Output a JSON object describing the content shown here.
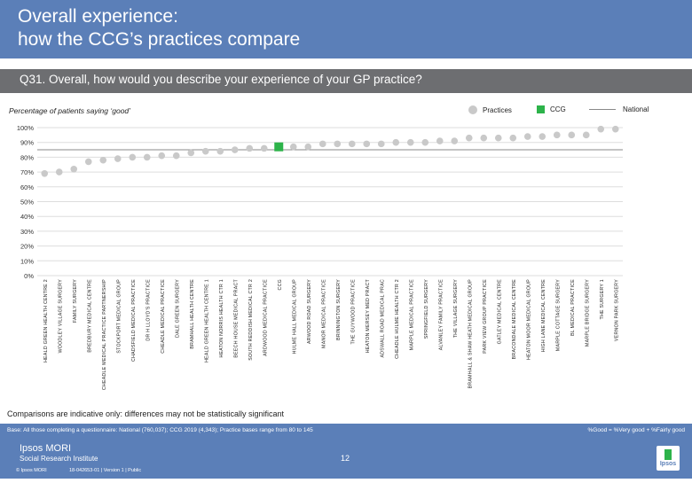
{
  "header": {
    "title": "Overall experience:\nhow the CCG’s practices compare",
    "question": "Q31. Overall, how would you describe your experience of your GP practice?"
  },
  "subtitle": "Percentage of patients saying ‘good’",
  "legend": {
    "practices": "Practices",
    "ccg": "CCG",
    "national": "National"
  },
  "colors": {
    "practice": "#c9c9c9",
    "ccg": "#2db34a",
    "national": "#888888",
    "header": "#5b7fb8"
  },
  "chart_data": {
    "type": "scatter",
    "ylim": [
      0,
      100
    ],
    "yticks": [
      "0%",
      "10%",
      "20%",
      "30%",
      "40%",
      "50%",
      "60%",
      "70%",
      "80%",
      "90%",
      "100%"
    ],
    "national_value": 85,
    "categories": [
      "HEALD GREEN HEALTH CENTRE 2",
      "WOODLEY VILLAGE SURGERY",
      "FAMILY SURGERY",
      "BREDBURY MEDICAL CENTRE",
      "CHEADLE MEDICAL PRACTICE PARTNERSHIP",
      "STOCKPORT MEDICAL GROUP",
      "CHADSFIELD MEDICAL PRACTICE",
      "DR H LLOYD'S PRACTICE",
      "CHEADLE MEDICAL PRACTICE",
      "DALE GREEN SURGERY",
      "BRAMHALL HEALTH CENTRE",
      "HEALD GREEN HEALTH CENTRE 1",
      "HEATON NORRIS HEALTH CTR 1",
      "BEECH HOUSE MEDICAL PRACT",
      "SOUTH REDDISH MEDICAL CTR 2",
      "ARDWOOD MEDICAL PRACTICE",
      "CCG",
      "HULME HALL MEDICAL GROUP",
      "ARWOOD ROAD SURGERY",
      "MANOR MEDICAL PRACTICE",
      "BRINNINGTON SURGERY",
      "THE GUYWOOD PRACTICE",
      "HEATON MERSEY MED PRACT",
      "ADSWALL ROAD MEDICAL PRAC",
      "CHEADLE HULME HEALTH CTR 2",
      "MARPLE MEDICAL PRACTICE",
      "SPRINGFIELD SURGERY",
      "ALVANLEY FAMILY PRACTICE",
      "THE VILLAGE SURGERY",
      "BRAMHALL & SHAW HEATH MEDICAL GROUP",
      "PARK VIEW GROUP PRACTICE",
      "GATLEY MEDICAL CENTRE",
      "BRACONDALE MEDICAL CENTRE",
      "HEATON MOOR MEDICAL GROUP",
      "HIGH LANE MEDICAL CENTRE",
      "MARPLE COTTAGE SURGERY",
      "BL MEDICAL PRACTICE",
      "MARPLE BRIDGE SURGERY",
      "THE SURGERY 1",
      "VERNON PARK SURGERY"
    ],
    "values": [
      69,
      70,
      72,
      77,
      78,
      79,
      80,
      80,
      81,
      81,
      83,
      84,
      84,
      85,
      86,
      86,
      87,
      87,
      87,
      89,
      89,
      89,
      89,
      89,
      90,
      90,
      90,
      91,
      91,
      93,
      93,
      93,
      93,
      94,
      94,
      95,
      95,
      95,
      99,
      99
    ],
    "ccg_index": 16
  },
  "note": "Comparisons are indicative only: differences may not be statistically significant",
  "footer": {
    "base": "Base: All those completing a questionnaire: National (760,037); CCG 2019 (4,343); Practice bases range from 80 to 145",
    "formula": "%Good = %Very good + %Fairly good",
    "logo": "Ipsos MORI",
    "logo_sub": "Social Research Institute",
    "page": "12",
    "copyright": "© Ipsos MORI",
    "jobref": "18-042653-01 | Version 1 | Public",
    "badge": "Ipsos"
  }
}
